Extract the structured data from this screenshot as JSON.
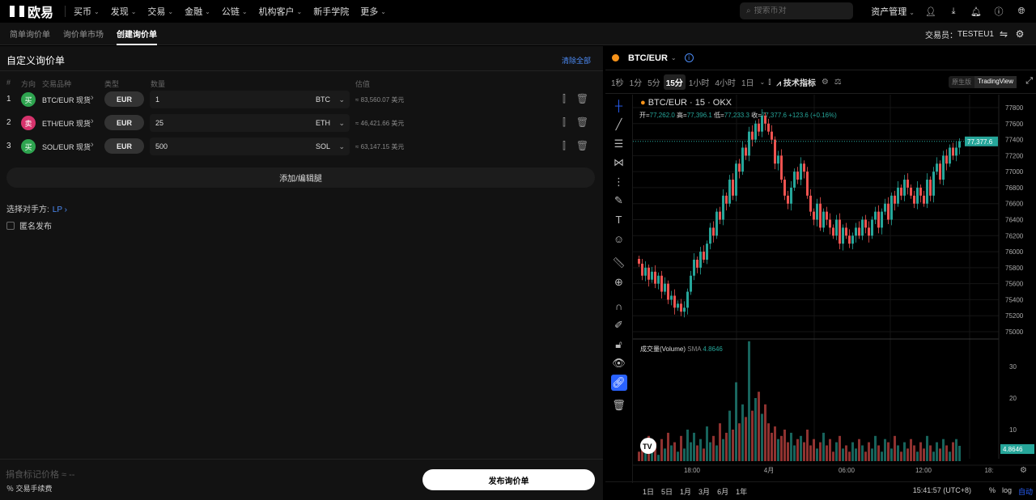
{
  "nav": {
    "logo": "欧易",
    "items": [
      "买币",
      "发现",
      "交易",
      "金融",
      "公链",
      "机构客户",
      "新手学院",
      "更多"
    ],
    "search_placeholder": "搜索币对",
    "asset_mgmt": "资产管理"
  },
  "subnav": {
    "tabs": [
      "简单询价单",
      "询价单市场",
      "创建询价单"
    ],
    "active": 2,
    "trader_label": "交易员：",
    "trader": "TESTEU1"
  },
  "form": {
    "title": "自定义询价单",
    "clear_all": "清除全部",
    "headers": [
      "#",
      "方向",
      "交易品种",
      "类型",
      "数量",
      "估值"
    ],
    "rows": [
      {
        "n": "1",
        "side": "买",
        "side_color": "#2ea44f",
        "instrument": "BTC/EUR 现货",
        "type": "EUR",
        "qty": "1",
        "unit": "BTC",
        "est": "≈ 83,560.07 美元"
      },
      {
        "n": "2",
        "side": "卖",
        "side_color": "#d6336c",
        "instrument": "ETH/EUR 现货",
        "type": "EUR",
        "qty": "25",
        "unit": "ETH",
        "est": "≈ 46,421.66 美元"
      },
      {
        "n": "3",
        "side": "买",
        "side_color": "#2ea44f",
        "instrument": "SOL/EUR 现货",
        "type": "EUR",
        "qty": "500",
        "unit": "SOL",
        "est": "≈ 63,147.15 美元"
      }
    ],
    "add_leg": "添加/编辑腿",
    "counterparty_label": "选择对手方:",
    "counterparty": "LP",
    "anonymous": "匿名发布",
    "mark_price": "捐食标记价格 ≈ --",
    "fee": "交易手续费",
    "publish": "发布询价单"
  },
  "chart": {
    "symbol": "BTC/EUR",
    "timeframes": [
      "1秒",
      "1分",
      "5分",
      "15分",
      "1小时",
      "4小时",
      "1日"
    ],
    "active_tf": 3,
    "indicators": "技术指标",
    "versions": [
      "原生版",
      "TradingView"
    ],
    "legend_title": "BTC/EUR · 15 · OKX",
    "ohlc": {
      "o_label": "开=",
      "o": "77,262.0",
      "h_label": "高=",
      "h": "77,396.1",
      "l_label": "低=",
      "l": "77,233.3",
      "c_label": "收=",
      "c": "77,377.6",
      "chg": "+123.6 (+0.16%)"
    },
    "volume_label": "成交量(Volume)",
    "sma_label": "SMA",
    "sma": "4.8646",
    "ranges": [
      "1日",
      "5日",
      "1月",
      "3月",
      "6月",
      "1年"
    ],
    "clock": "15:41:57 (UTC+8)",
    "pct": "%",
    "log": "log",
    "auto": "自动",
    "up_color": "#26a69a",
    "down_color": "#ef5350"
  },
  "chart_data": {
    "type": "candlestick",
    "price_ticks": [
      75000,
      75200,
      75400,
      75600,
      75800,
      76000,
      76200,
      76400,
      76600,
      76800,
      77000,
      77200,
      77400,
      77600,
      77800
    ],
    "ylim": [
      75000,
      77800
    ],
    "last_price": "77,377.6",
    "time_ticks": [
      "18:00",
      "4月",
      "06:00",
      "12:00",
      "18:"
    ],
    "volume_ticks": [
      10,
      20,
      30
    ],
    "volume_last": "4.8646",
    "closes": [
      75850,
      75700,
      75800,
      75650,
      75750,
      75600,
      75700,
      75500,
      75600,
      75400,
      75450,
      75300,
      75350,
      75250,
      75300,
      75500,
      75700,
      75900,
      75800,
      76000,
      75900,
      76100,
      76300,
      76200,
      76500,
      76400,
      76700,
      76600,
      76900,
      76700,
      77100,
      77000,
      77300,
      77200,
      77500,
      77400,
      77600,
      77500,
      77700,
      77600,
      77500,
      77400,
      77100,
      77200,
      76900,
      76700,
      76600,
      76800,
      77000,
      76900,
      77100,
      77000,
      76700,
      76500,
      76400,
      76600,
      76300,
      76500,
      76400,
      76300,
      76200,
      76400,
      76100,
      76300,
      76200,
      76100,
      76200,
      76300,
      76200,
      76400,
      76300,
      76200,
      76400,
      76500,
      76300,
      76500,
      76600,
      76400,
      76700,
      76600,
      76800,
      76700,
      76900,
      76800,
      76700,
      76600,
      76800,
      76700,
      76600,
      76900,
      76700,
      77000,
      77100,
      76900,
      77200,
      77100,
      77300,
      77200,
      77300,
      77377.6
    ],
    "volumes": [
      3,
      5,
      4,
      8,
      3,
      6,
      2,
      7,
      4,
      9,
      5,
      6,
      3,
      8,
      4,
      10,
      6,
      9,
      5,
      7,
      4,
      11,
      6,
      8,
      5,
      12,
      7,
      9,
      16,
      10,
      25,
      12,
      18,
      14,
      38,
      16,
      20,
      22,
      15,
      18,
      12,
      9,
      11,
      7,
      8,
      10,
      6,
      9,
      5,
      7,
      8,
      6,
      10,
      5,
      7,
      4,
      6,
      9,
      5,
      7,
      3,
      6,
      8,
      4,
      5,
      3,
      6,
      4,
      7,
      5,
      3,
      6,
      4,
      8,
      5,
      3,
      7,
      6,
      4,
      8,
      5,
      3,
      6,
      4,
      7,
      5,
      3,
      6,
      4,
      8,
      5,
      3,
      6,
      4,
      7,
      5,
      3,
      6,
      7,
      4.86
    ]
  }
}
